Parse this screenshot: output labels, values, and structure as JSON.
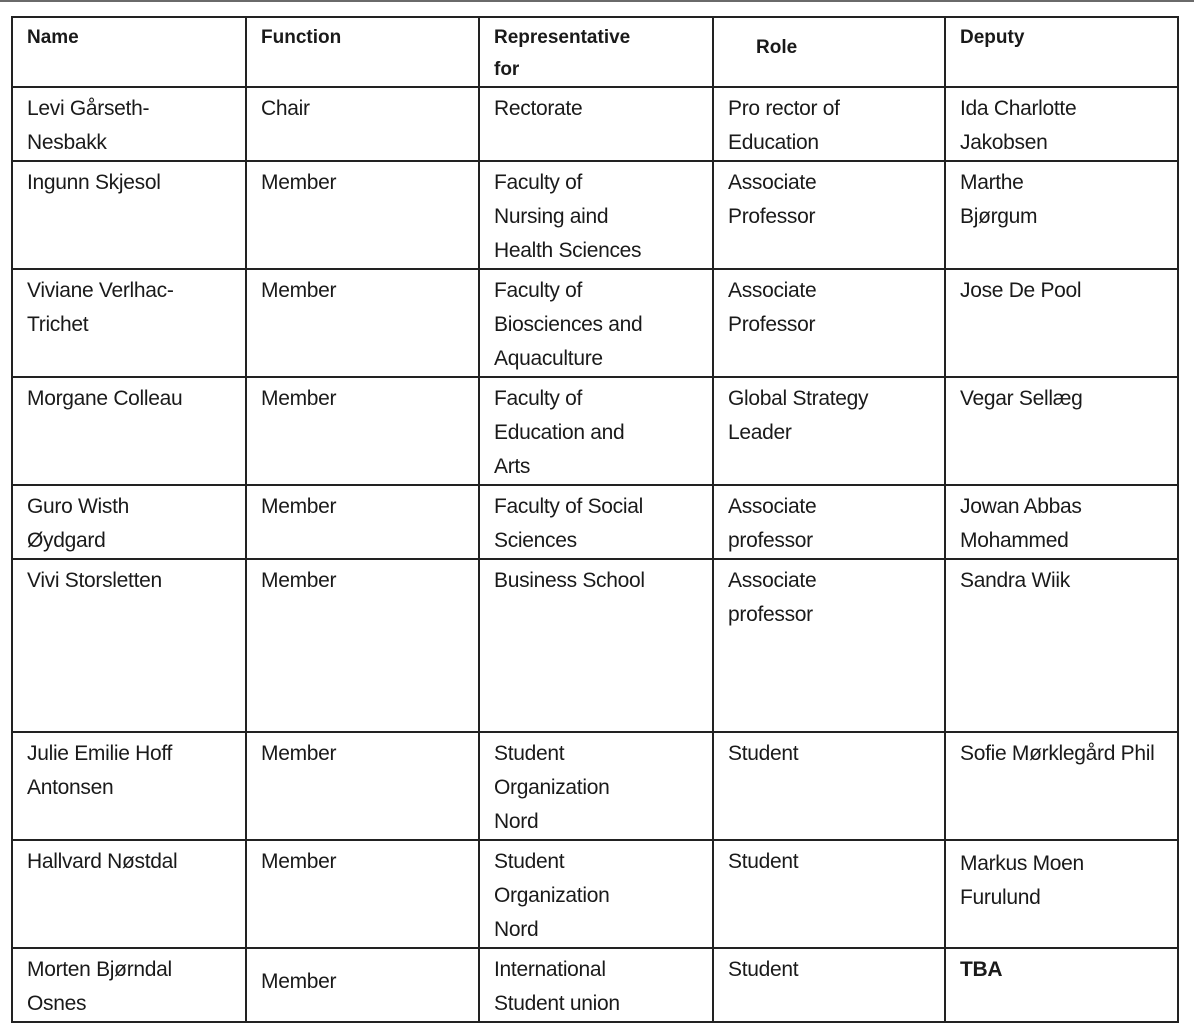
{
  "headers": [
    [
      "Name"
    ],
    [
      "Function"
    ],
    [
      "Representative",
      "for"
    ],
    [
      "Role"
    ],
    [
      "Deputy"
    ]
  ],
  "rows": [
    {
      "cells": [
        [
          "Levi Gårseth-",
          "Nesbakk"
        ],
        [
          "Chair"
        ],
        [
          "Rectorate"
        ],
        [
          "Pro rector of",
          "Education"
        ],
        [
          "Ida Charlotte",
          "Jakobsen"
        ]
      ]
    },
    {
      "cells": [
        [
          "Ingunn Skjesol"
        ],
        [
          "Member"
        ],
        [
          "Faculty of",
          "Nursing aind",
          "Health Sciences"
        ],
        [
          "Associate",
          "Professor"
        ],
        [
          "Marthe",
          "Bjørgum"
        ]
      ]
    },
    {
      "cells": [
        [
          "Viviane Verlhac-",
          "Trichet"
        ],
        [
          "Member"
        ],
        [
          "Faculty of",
          "Biosciences and",
          "Aquaculture"
        ],
        [
          "Associate",
          "Professor"
        ],
        [
          "Jose De Pool"
        ]
      ]
    },
    {
      "cells": [
        [
          "Morgane Colleau"
        ],
        [
          "Member"
        ],
        [
          "Faculty of",
          "Education  and",
          "Arts"
        ],
        [
          "Global Strategy",
          "Leader"
        ],
        [
          "Vegar Sellæg"
        ]
      ]
    },
    {
      "cells": [
        [
          "Guro Wisth",
          "Øydgard"
        ],
        [
          "Member"
        ],
        [
          "Faculty of Social",
          "Sciences"
        ],
        [
          "Associate",
          "professor"
        ],
        [
          "Jowan Abbas",
          "Mohammed"
        ]
      ]
    },
    {
      "cells": [
        [
          "Vivi Storsletten"
        ],
        [
          "Member"
        ],
        [
          "Business School"
        ],
        [
          "Associate",
          "professor"
        ],
        [
          "Sandra Wiik"
        ]
      ]
    },
    {
      "cells": [
        [
          "Julie Emilie Hoff",
          "Antonsen"
        ],
        [
          "Member"
        ],
        [
          "Student",
          "Organization",
          "Nord"
        ],
        [
          "Student"
        ],
        [
          "Sofie Mørklegård Phil"
        ]
      ]
    },
    {
      "cells": [
        [
          "Hallvard Nøstdal"
        ],
        [
          "Member"
        ],
        [
          "Student",
          "Organization",
          "Nord"
        ],
        [
          "Student"
        ],
        [
          "Markus Moen",
          "Furulund"
        ]
      ]
    },
    {
      "cells": [
        [
          "Morten Bjørndal",
          "Osnes"
        ],
        [
          "Member"
        ],
        [
          "International",
          "Student union"
        ],
        [
          "Student"
        ],
        [
          "TBA"
        ]
      ]
    }
  ]
}
